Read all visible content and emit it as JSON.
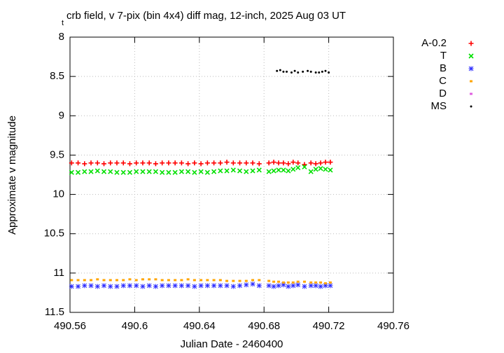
{
  "chart_data": {
    "type": "scatter",
    "title_prefix": "t",
    "title": "crb field, v 7-pix (bin 4x4) diff mag, 12-inch, 2025 Aug 03 UT",
    "x_label": "Julian Date - 2460400",
    "y_label": "Approximate v magnitude",
    "xlim": [
      490.56,
      490.76
    ],
    "xticks": [
      490.56,
      490.6,
      490.64,
      490.68,
      490.72,
      490.76
    ],
    "ylim": [
      8,
      11.5
    ],
    "yticks": [
      8,
      8.5,
      9,
      9.5,
      10,
      10.5,
      11,
      11.5
    ],
    "y_reversed": true,
    "grid": true,
    "legend_position": "outside-right",
    "series": [
      {
        "name": "A-0.2",
        "color": "#ff0000",
        "point": "plus",
        "x": [
          490.561,
          490.565,
          490.569,
          490.573,
          490.577,
          490.581,
          490.585,
          490.589,
          490.593,
          490.597,
          490.601,
          490.605,
          490.609,
          490.613,
          490.617,
          490.621,
          490.625,
          490.629,
          490.633,
          490.637,
          490.641,
          490.645,
          490.649,
          490.653,
          490.657,
          490.661,
          490.665,
          490.669,
          490.673,
          490.677,
          490.683,
          490.686,
          490.689,
          490.692,
          490.695,
          490.698,
          490.701,
          490.705,
          490.709,
          490.712,
          490.715,
          490.718,
          490.721
        ],
        "values": [
          9.6,
          9.6,
          9.61,
          9.6,
          9.6,
          9.61,
          9.6,
          9.6,
          9.6,
          9.61,
          9.6,
          9.6,
          9.6,
          9.61,
          9.6,
          9.6,
          9.6,
          9.6,
          9.61,
          9.6,
          9.61,
          9.6,
          9.6,
          9.6,
          9.59,
          9.6,
          9.6,
          9.6,
          9.6,
          9.61,
          9.6,
          9.59,
          9.6,
          9.6,
          9.61,
          9.59,
          9.6,
          9.62,
          9.6,
          9.61,
          9.6,
          9.59,
          9.59
        ]
      },
      {
        "name": "T",
        "color": "#00e000",
        "point": "cross",
        "x": [
          490.561,
          490.565,
          490.569,
          490.573,
          490.577,
          490.581,
          490.585,
          490.589,
          490.593,
          490.597,
          490.601,
          490.605,
          490.609,
          490.613,
          490.617,
          490.621,
          490.625,
          490.629,
          490.633,
          490.637,
          490.641,
          490.645,
          490.649,
          490.653,
          490.657,
          490.661,
          490.665,
          490.669,
          490.673,
          490.677,
          490.683,
          490.686,
          490.689,
          490.692,
          490.695,
          490.698,
          490.701,
          490.705,
          490.709,
          490.712,
          490.715,
          490.718,
          490.721
        ],
        "values": [
          9.72,
          9.72,
          9.71,
          9.71,
          9.7,
          9.71,
          9.71,
          9.72,
          9.72,
          9.72,
          9.71,
          9.71,
          9.71,
          9.71,
          9.72,
          9.72,
          9.72,
          9.71,
          9.71,
          9.72,
          9.71,
          9.72,
          9.71,
          9.7,
          9.7,
          9.69,
          9.7,
          9.71,
          9.7,
          9.69,
          9.71,
          9.7,
          9.69,
          9.69,
          9.7,
          9.68,
          9.66,
          9.65,
          9.71,
          9.68,
          9.67,
          9.68,
          9.69
        ]
      },
      {
        "name": "B",
        "color": "#2a2aff",
        "point": "star",
        "x": [
          490.561,
          490.565,
          490.569,
          490.573,
          490.577,
          490.581,
          490.585,
          490.589,
          490.593,
          490.597,
          490.601,
          490.605,
          490.609,
          490.613,
          490.617,
          490.621,
          490.625,
          490.629,
          490.633,
          490.637,
          490.641,
          490.645,
          490.649,
          490.653,
          490.657,
          490.661,
          490.665,
          490.669,
          490.673,
          490.677,
          490.683,
          490.686,
          490.689,
          490.692,
          490.695,
          490.698,
          490.701,
          490.705,
          490.709,
          490.712,
          490.715,
          490.718,
          490.721
        ],
        "values": [
          11.17,
          11.17,
          11.16,
          11.16,
          11.17,
          11.16,
          11.17,
          11.17,
          11.16,
          11.16,
          11.16,
          11.17,
          11.16,
          11.17,
          11.16,
          11.16,
          11.16,
          11.16,
          11.16,
          11.17,
          11.16,
          11.16,
          11.16,
          11.16,
          11.16,
          11.17,
          11.16,
          11.15,
          11.14,
          11.16,
          11.16,
          11.17,
          11.16,
          11.15,
          11.17,
          11.16,
          11.15,
          11.17,
          11.16,
          11.16,
          11.17,
          11.16,
          11.16
        ]
      },
      {
        "name": "C",
        "color": "#ffa500",
        "point": "square",
        "x": [
          490.561,
          490.565,
          490.569,
          490.573,
          490.577,
          490.581,
          490.585,
          490.589,
          490.593,
          490.597,
          490.601,
          490.605,
          490.609,
          490.613,
          490.617,
          490.621,
          490.625,
          490.629,
          490.633,
          490.637,
          490.641,
          490.645,
          490.649,
          490.653,
          490.657,
          490.661,
          490.665,
          490.669,
          490.673,
          490.677,
          490.683,
          490.686,
          490.689,
          490.692,
          490.695,
          490.698,
          490.701,
          490.705,
          490.709,
          490.712,
          490.715,
          490.718,
          490.721
        ],
        "values": [
          11.09,
          11.09,
          11.09,
          11.09,
          11.08,
          11.09,
          11.09,
          11.09,
          11.09,
          11.08,
          11.09,
          11.08,
          11.08,
          11.08,
          11.09,
          11.09,
          11.09,
          11.09,
          11.08,
          11.09,
          11.09,
          11.09,
          11.09,
          11.09,
          11.1,
          11.1,
          11.1,
          11.1,
          11.09,
          11.09,
          11.1,
          11.11,
          11.11,
          11.12,
          11.12,
          11.12,
          11.11,
          11.11,
          11.12,
          11.12,
          11.12,
          11.13,
          11.12
        ]
      },
      {
        "name": "D",
        "color": "#e060e0",
        "point": "square",
        "x": [],
        "values": []
      },
      {
        "name": "MS",
        "color": "#000000",
        "point": "dot",
        "x": [
          490.688,
          490.69,
          490.692,
          490.694,
          490.697,
          490.699,
          490.701,
          490.704,
          490.707,
          490.709,
          490.712,
          490.714,
          490.716,
          490.718,
          490.72
        ],
        "values": [
          8.43,
          8.42,
          8.44,
          8.44,
          8.45,
          8.43,
          8.45,
          8.44,
          8.43,
          8.44,
          8.45,
          8.45,
          8.44,
          8.43,
          8.45
        ]
      }
    ]
  }
}
